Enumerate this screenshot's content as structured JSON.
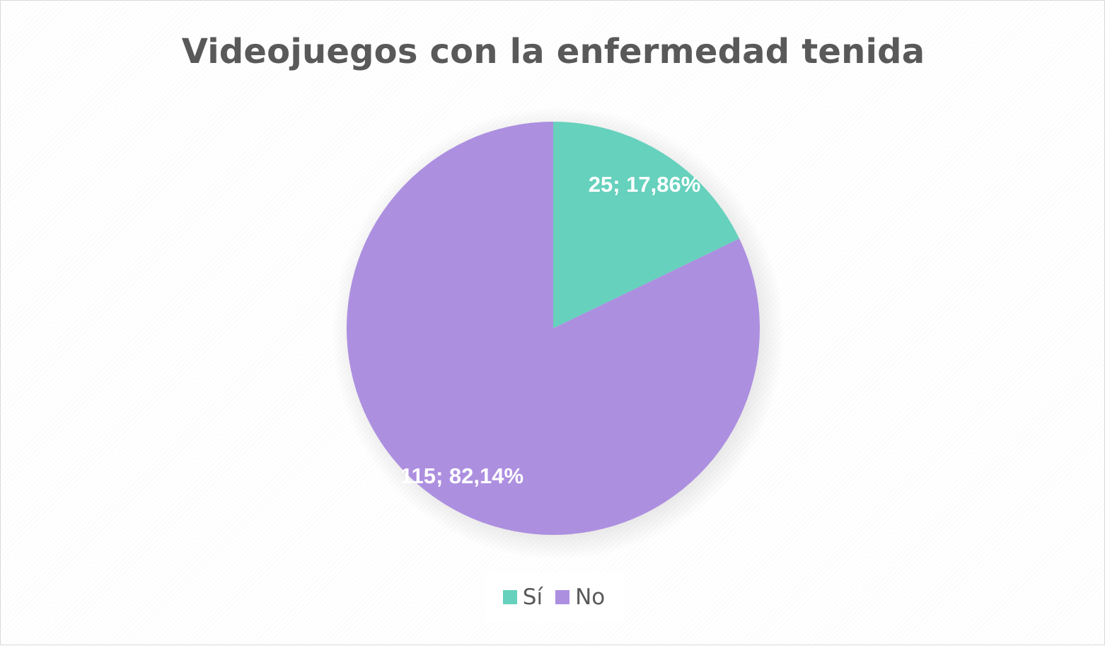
{
  "chart_data": {
    "type": "pie",
    "title": "Videojuegos con la enfermedad tenida",
    "categories": [
      "Sí",
      "No"
    ],
    "values": [
      25,
      115
    ],
    "percentages": [
      "17,86%",
      "82,14%"
    ],
    "data_labels": [
      "25; 17,86%",
      "115; 82,14%"
    ],
    "colors": [
      "#66d1bd",
      "#ad8fe0"
    ],
    "legend_position": "bottom"
  }
}
